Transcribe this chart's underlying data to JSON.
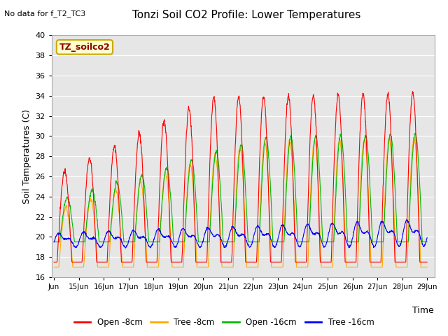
{
  "title": "Tonzi Soil CO2 Profile: Lower Temperatures",
  "subtitle": "No data for f_T2_TC3",
  "ylabel": "Soil Temperatures (C)",
  "xlabel": "Time",
  "ylim": [
    16,
    40
  ],
  "yticks": [
    16,
    18,
    20,
    22,
    24,
    26,
    28,
    30,
    32,
    34,
    36,
    38,
    40
  ],
  "legend_box_label": "TZ_soilco2",
  "legend_entries": [
    "Open -8cm",
    "Tree -8cm",
    "Open -16cm",
    "Tree -16cm"
  ],
  "legend_colors": [
    "#ff0000",
    "#ffaa00",
    "#00bb00",
    "#0000ff"
  ],
  "bg_color": "#ffffff",
  "plot_bg_color": "#e8e8e8",
  "x_tick_labels": [
    "Jun",
    "15Jun",
    "16Jun",
    "17Jun",
    "18Jun",
    "19Jun",
    "20Jun",
    "21Jun",
    "22Jun",
    "23Jun",
    "24Jun",
    "25Jun",
    "26Jun",
    "27Jun",
    "28Jun",
    "29Jun"
  ],
  "n_days": 15,
  "points_per_day": 96
}
